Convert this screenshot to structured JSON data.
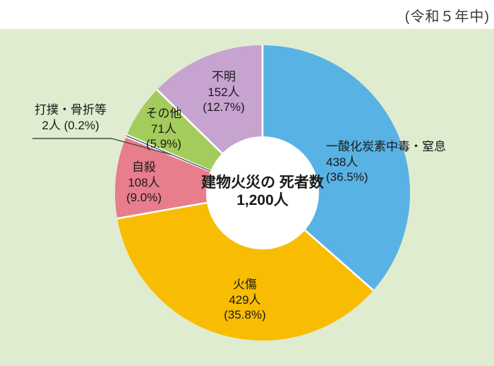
{
  "header": {
    "period_label": "(令和５年中)"
  },
  "chart_data": {
    "type": "pie",
    "title": "建物火災の死者数",
    "center_label": {
      "line1": "建物火災の",
      "line2": "死者数",
      "line3": "1,200人"
    },
    "total_value": 1200,
    "unit": "人",
    "background_color": "#e0ecd0",
    "start_angle": "top",
    "direction": "clockwise",
    "slices": [
      {
        "id": "co-poisoning",
        "label": "一酸化炭素中毒・窒息",
        "value": 438,
        "pct": 36.5,
        "count_label": "438人",
        "pct_label": "(36.5%)",
        "color": "#58b2e4"
      },
      {
        "id": "burns",
        "label": "火傷",
        "value": 429,
        "pct": 35.8,
        "count_label": "429人",
        "pct_label": "(35.8%)",
        "color": "#f8bd02"
      },
      {
        "id": "suicide",
        "label": "自殺",
        "value": 108,
        "pct": 9.0,
        "count_label": "108人",
        "pct_label": "(9.0%)",
        "color": "#e87d8c"
      },
      {
        "id": "bruise-fracture",
        "label": "打撲・骨折等",
        "value": 2,
        "pct": 0.2,
        "count_label": "2人",
        "pct_label": "(0.2%)",
        "color": "#556474"
      },
      {
        "id": "other",
        "label": "その他",
        "value": 71,
        "pct": 5.9,
        "count_label": "71人",
        "pct_label": "(5.9%)",
        "color": "#a3cc5c"
      },
      {
        "id": "unknown",
        "label": "不明",
        "value": 152,
        "pct": 12.7,
        "count_label": "152人",
        "pct_label": "(12.7%)",
        "color": "#c7a3d0"
      }
    ]
  }
}
